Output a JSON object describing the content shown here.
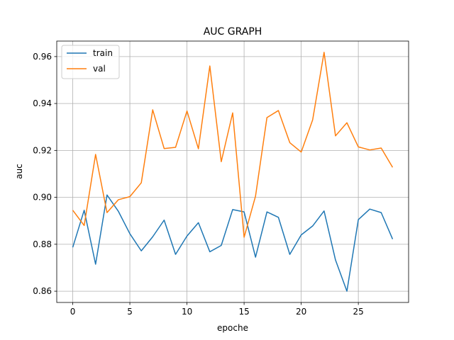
{
  "chart_data": {
    "type": "line",
    "title": "AUC GRAPH",
    "xlabel": "epoche",
    "ylabel": "auc",
    "xlim": [
      -1.4,
      29.4
    ],
    "ylim": [
      0.8552,
      0.9666
    ],
    "x_ticks": [
      0,
      5,
      10,
      15,
      20,
      25
    ],
    "y_ticks": [
      0.86,
      0.88,
      0.9,
      0.92,
      0.94,
      0.96
    ],
    "y_tick_labels": [
      "0.86",
      "0.88",
      "0.90",
      "0.92",
      "0.94",
      "0.96"
    ],
    "grid": true,
    "legend_position": "top-left",
    "x": [
      0,
      1,
      2,
      3,
      4,
      5,
      6,
      7,
      8,
      9,
      10,
      11,
      12,
      13,
      14,
      15,
      16,
      17,
      18,
      19,
      20,
      21,
      22,
      23,
      24,
      25,
      26,
      27,
      28
    ],
    "series": [
      {
        "name": "train",
        "color": "#1f77b4",
        "values": [
          0.8787,
          0.8945,
          0.8715,
          0.901,
          0.894,
          0.8845,
          0.8772,
          0.8832,
          0.8903,
          0.8757,
          0.8835,
          0.8892,
          0.8768,
          0.8795,
          0.8948,
          0.8938,
          0.8745,
          0.8938,
          0.8915,
          0.8757,
          0.884,
          0.8878,
          0.8942,
          0.8733,
          0.86,
          0.8905,
          0.895,
          0.8935,
          0.8822
        ]
      },
      {
        "name": "val",
        "color": "#ff7f0e",
        "values": [
          0.8945,
          0.888,
          0.9183,
          0.8935,
          0.899,
          0.9003,
          0.9062,
          0.9373,
          0.9208,
          0.9213,
          0.9368,
          0.9207,
          0.956,
          0.9152,
          0.936,
          0.883,
          0.9005,
          0.934,
          0.937,
          0.9233,
          0.9193,
          0.933,
          0.9618,
          0.9262,
          0.9318,
          0.9215,
          0.9202,
          0.921,
          0.9128
        ]
      }
    ]
  }
}
